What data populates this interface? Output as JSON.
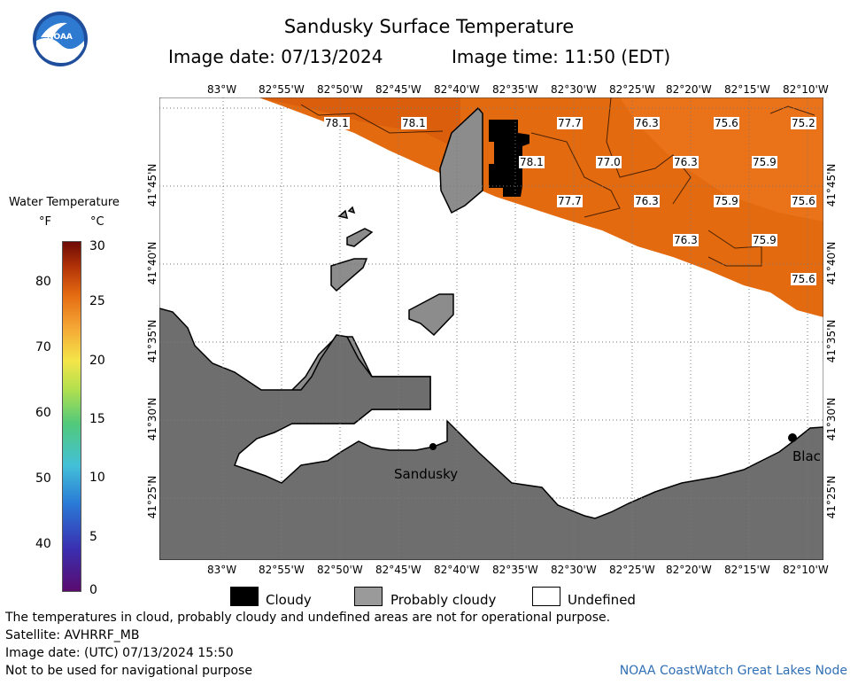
{
  "title": "Sandusky Surface Temperature",
  "image_date_label": "Image date: 07/13/2024",
  "image_time_label": "Image time: 11:50 (EDT)",
  "logo_text": "NOAA",
  "colorbar": {
    "title": "Water Temperature",
    "unit_f": "°F",
    "unit_c": "°C",
    "f_ticks": [
      "80",
      "70",
      "60",
      "50",
      "40"
    ],
    "c_ticks": [
      "30",
      "25",
      "20",
      "15",
      "10",
      "5",
      "0"
    ]
  },
  "lon_labels": [
    "83°W",
    "82°55'W",
    "82°50'W",
    "82°45'W",
    "82°40'W",
    "82°35'W",
    "82°30'W",
    "82°25'W",
    "82°20'W",
    "82°15'W",
    "82°10'W"
  ],
  "lat_labels": [
    "41°45'N",
    "41°40'N",
    "41°35'N",
    "41°30'N",
    "41°25'N"
  ],
  "temperature_labels": [
    "78.1",
    "78.1",
    "77.7",
    "76.3",
    "75.6",
    "75.2",
    "78.1",
    "77.0",
    "76.3",
    "75.9",
    "77.7",
    "76.3",
    "75.9",
    "75.6",
    "76.3",
    "75.9",
    "75.6"
  ],
  "places": {
    "sandusky": "Sandusky",
    "blac": "Blac"
  },
  "legend": {
    "cloudy": "Cloudy",
    "probably_cloudy": "Probably cloudy",
    "undefined": "Undefined"
  },
  "notes": [
    "The temperatures in cloud, probably cloudy and undefined areas are not for operational purpose.",
    "Satellite: AVHRRF_MB",
    "Image date: (UTC) 07/13/2024  15:50",
    "Not to be used for navigational purpose"
  ],
  "credit": "NOAA CoastWatch Great Lakes Node",
  "colors": {
    "water_warm": "#e46a10",
    "land": "#6e6e6e",
    "cloud": "#000000",
    "probably_cloud": "#9a9a9a",
    "credit": "#2f6fb5"
  }
}
